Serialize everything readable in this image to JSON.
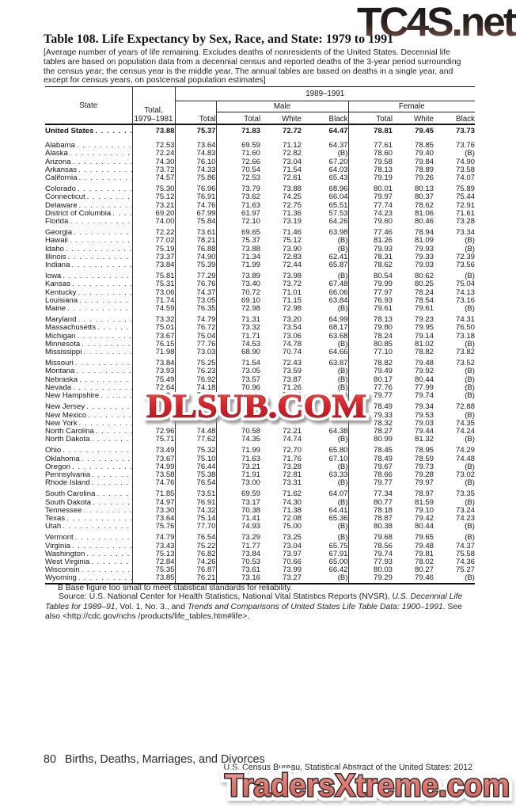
{
  "page": {
    "title": "Table 108. Life Expectancy by Sex, Race, and State: 1979 to 1991",
    "note": "[Average number of years of life remaining. Excludes deaths of nonresidents of the United States. Decennial life tables are based on population data from a decennial census and reported deaths of the 3-year period surrounding the census year; the census year is the middle year. The annual tables are based on deaths in a single year, and except for census years, on postcensal population estimates]",
    "footnote": "B Base figure too small to meet statistical standards for reliability.",
    "source_segments": [
      {
        "text": "Source: U.S. National Center for Health Statistics, National Vital Statistics Reports (NVSR), ",
        "italic": false
      },
      {
        "text": "U.S. Decennial Life Tables for 1989–91",
        "italic": true
      },
      {
        "text": ", Vol. 1, No. 3., and ",
        "italic": false
      },
      {
        "text": "Trends and Comparisons of United States Life Table Data: 1900–1991",
        "italic": true
      },
      {
        "text": ". See also <http://cdc.gov/nchs /products/life_tables.htm#life>.",
        "italic": false
      }
    ],
    "footer": {
      "page_number": "80",
      "section": "Births, Deaths, Marriages, and Divorces",
      "credit": "U.S. Census Bureau, Statistical Abstract of the United States: 2012"
    }
  },
  "watermarks": {
    "top": "TC4S.net",
    "middle": "DLSUB.COM",
    "bottom": "TradersXtreme.com",
    "top_colors": [
      "#151515",
      "#9a7568"
    ],
    "middle_colors": [
      "#ee4f44",
      "#b01420"
    ],
    "bottom_colors": [
      "#eda49c",
      "#cf6058"
    ]
  },
  "table": {
    "header": {
      "state": "State",
      "total_7981_line1": "Total,",
      "total_7981_line2": "1979–1981",
      "span_8991": "1989–1991",
      "total": "Total",
      "male": "Male",
      "female": "Female",
      "sub": [
        "Total",
        "White",
        "Black"
      ]
    },
    "us_row": {
      "state": "United States",
      "values": [
        "73.88",
        "75.37",
        "71.83",
        "72.72",
        "64.47",
        "78.81",
        "79.45",
        "73.73"
      ]
    },
    "groups": [
      [
        {
          "state": "Alabama",
          "values": [
            "72.53",
            "73.64",
            "69.59",
            "71.12",
            "64.37",
            "77.61",
            "78.85",
            "73.76"
          ]
        },
        {
          "state": "Alaska",
          "values": [
            "72.24",
            "74.83",
            "71.60",
            "72.82",
            "(B)",
            "78.60",
            "79.40",
            "(B)"
          ]
        },
        {
          "state": "Arizona",
          "values": [
            "74.30",
            "76.10",
            "72.66",
            "73.04",
            "67.20",
            "79.58",
            "79.84",
            "74.90"
          ]
        },
        {
          "state": "Arkansas",
          "values": [
            "73.72",
            "74.33",
            "70.54",
            "71.54",
            "64.03",
            "78.13",
            "78.89",
            "73.58"
          ]
        },
        {
          "state": "California",
          "values": [
            "74.57",
            "75.86",
            "72.53",
            "72.61",
            "65.43",
            "79.19",
            "79.26",
            "74.07"
          ]
        }
      ],
      [
        {
          "state": "Colorado",
          "values": [
            "75.30",
            "76.96",
            "73.79",
            "73.88",
            "68.96",
            "80.01",
            "80.13",
            "75.89"
          ]
        },
        {
          "state": "Connecticut",
          "values": [
            "75.12",
            "76.91",
            "73.62",
            "74.25",
            "66.04",
            "79.97",
            "80.37",
            "75.44"
          ]
        },
        {
          "state": "Delaware",
          "values": [
            "73.21",
            "74.76",
            "71.63",
            "72.75",
            "65.51",
            "77.74",
            "78.62",
            "72.91"
          ]
        },
        {
          "state": "District of Columbia",
          "values": [
            "69.20",
            "67.99",
            "61.97",
            "71.36",
            "57.53",
            "74.23",
            "81.06",
            "71.61"
          ]
        },
        {
          "state": "Florida",
          "values": [
            "74.00",
            "75.84",
            "72.10",
            "73.19",
            "64.26",
            "79.60",
            "80.46",
            "73.28"
          ]
        }
      ],
      [
        {
          "state": "Georgia",
          "values": [
            "72.22",
            "73.61",
            "69.65",
            "71.46",
            "63.98",
            "77.46",
            "78.94",
            "73.34"
          ]
        },
        {
          "state": "Hawaii",
          "values": [
            "77.02",
            "78.21",
            "75.37",
            "75.12",
            "(B)",
            "81.26",
            "81.09",
            "(B)"
          ]
        },
        {
          "state": "Idaho",
          "values": [
            "75.19",
            "76.88",
            "73.88",
            "73.90",
            "(B)",
            "79.93",
            "79.93",
            "(B)"
          ]
        },
        {
          "state": "Illinois",
          "values": [
            "73.37",
            "74.90",
            "71.34",
            "72.83",
            "62.41",
            "78.31",
            "79.33",
            "72.39"
          ]
        },
        {
          "state": "Indiana",
          "values": [
            "73.84",
            "75.39",
            "71.99",
            "72.44",
            "65.87",
            "78.62",
            "79.03",
            "73.56"
          ]
        }
      ],
      [
        {
          "state": "Iowa",
          "values": [
            "75.81",
            "77.29",
            "73.89",
            "73.98",
            "(B)",
            "80.54",
            "80.62",
            "(B)"
          ]
        },
        {
          "state": "Kansas",
          "values": [
            "75.31",
            "76.76",
            "73.40",
            "73.72",
            "67.48",
            "79.99",
            "80.25",
            "75.04"
          ]
        },
        {
          "state": "Kentucky",
          "values": [
            "73.06",
            "74.37",
            "70.72",
            "71.01",
            "66.06",
            "77.97",
            "78.24",
            "74.13"
          ]
        },
        {
          "state": "Louisiana",
          "values": [
            "71.74",
            "73.05",
            "69.10",
            "71.15",
            "63.84",
            "76.93",
            "78.54",
            "73.16"
          ]
        },
        {
          "state": "Maine",
          "values": [
            "74.59",
            "76.35",
            "72.98",
            "72.98",
            "(B)",
            "79.61",
            "79.61",
            "(B)"
          ]
        }
      ],
      [
        {
          "state": "Maryland",
          "values": [
            "73.32",
            "74.79",
            "71.31",
            "73.20",
            "64.99",
            "78.13",
            "79.23",
            "74.31"
          ]
        },
        {
          "state": "Massachusetts",
          "values": [
            "75.01",
            "76.72",
            "73.32",
            "73.54",
            "68.17",
            "79.80",
            "79.95",
            "76.50"
          ]
        },
        {
          "state": "Michigan",
          "values": [
            "73.67",
            "75.04",
            "71.71",
            "73.06",
            "63.68",
            "78.24",
            "79.14",
            "73.18"
          ]
        },
        {
          "state": "Minnesota",
          "values": [
            "76.15",
            "77.76",
            "74.53",
            "74.78",
            "(B)",
            "80.85",
            "81.02",
            "(B)"
          ]
        },
        {
          "state": "Mississippi",
          "values": [
            "71.98",
            "73.03",
            "68.90",
            "70.74",
            "64.66",
            "77.10",
            "78.82",
            "73.82"
          ]
        }
      ],
      [
        {
          "state": "Missouri",
          "values": [
            "73.84",
            "75.25",
            "71.54",
            "72.43",
            "63.87",
            "78.82",
            "79.48",
            "73.52"
          ]
        },
        {
          "state": "Montana",
          "values": [
            "73.93",
            "76.23",
            "73.05",
            "73.59",
            "(B)",
            "79.49",
            "79.92",
            "(B)"
          ]
        },
        {
          "state": "Nebraska",
          "values": [
            "75.49",
            "76.92",
            "73.57",
            "73.87",
            "(B)",
            "80.17",
            "80.44",
            "(B)"
          ]
        },
        {
          "state": "Nevada",
          "values": [
            "72.64",
            "74.18",
            "70.96",
            "71.26",
            "(B)",
            "77.76",
            "77.99",
            "(B)"
          ]
        },
        {
          "state": "New Hampshire",
          "values": [
            "74.98",
            "76.72",
            "73.52",
            "73.48",
            "(B)",
            "79.77",
            "79.74",
            "(B)"
          ]
        }
      ],
      [
        {
          "state": "New Jersey",
          "values": [
            "",
            "",
            "",
            "",
            "",
            "78.49",
            "79.34",
            "72.88"
          ]
        },
        {
          "state": "New Mexico",
          "values": [
            "",
            "",
            "",
            "",
            "",
            "79.33",
            "79.53",
            "(B)"
          ]
        },
        {
          "state": "New York",
          "values": [
            "",
            "",
            "",
            "",
            "",
            "78.32",
            "79.03",
            "74.35"
          ]
        },
        {
          "state": "North Carolina",
          "values": [
            "72.96",
            "74.48",
            "70.58",
            "72.21",
            "64.38",
            "78.27",
            "79.44",
            "74.24"
          ]
        },
        {
          "state": "North Dakota",
          "values": [
            "75.71",
            "77.62",
            "74.35",
            "74.74",
            "(B)",
            "80.99",
            "81.32",
            "(B)"
          ]
        }
      ],
      [
        {
          "state": "Ohio",
          "values": [
            "73.49",
            "75.32",
            "71.99",
            "72.70",
            "65.80",
            "78.45",
            "78.95",
            "74.29"
          ]
        },
        {
          "state": "Oklahoma",
          "values": [
            "73.67",
            "75.10",
            "71.63",
            "71.76",
            "67.10",
            "78.49",
            "78.59",
            "74.48"
          ]
        },
        {
          "state": "Oregon",
          "values": [
            "74.99",
            "76.44",
            "73.21",
            "73.28",
            "(B)",
            "79.67",
            "79.73",
            "(B)"
          ]
        },
        {
          "state": "Pennsylvania",
          "values": [
            "73.58",
            "75.38",
            "71.91",
            "72.81",
            "63.33",
            "78.66",
            "79.28",
            "73.02"
          ]
        },
        {
          "state": "Rhode Island",
          "values": [
            "74.76",
            "76.54",
            "73.00",
            "73.31",
            "(B)",
            "79.77",
            "79.97",
            "(B)"
          ]
        }
      ],
      [
        {
          "state": "South Carolina",
          "values": [
            "71.85",
            "73.51",
            "69.59",
            "71.62",
            "64.07",
            "77.34",
            "78.97",
            "73.35"
          ]
        },
        {
          "state": "South Dakota",
          "values": [
            "74.97",
            "76.91",
            "73.17",
            "74.30",
            "(B)",
            "80.77",
            "81.59",
            "(B)"
          ]
        },
        {
          "state": "Tennessee",
          "values": [
            "73.30",
            "74.32",
            "70.38",
            "71.38",
            "64.41",
            "78.18",
            "79.10",
            "73.24"
          ]
        },
        {
          "state": "Texas",
          "values": [
            "73.64",
            "75.14",
            "71.41",
            "72.08",
            "65.36",
            "78.87",
            "79.42",
            "74.23"
          ]
        },
        {
          "state": "Utah",
          "values": [
            "75.76",
            "77.70",
            "74.93",
            "75.00",
            "(B)",
            "80.38",
            "80.44",
            "(B)"
          ]
        }
      ],
      [
        {
          "state": "Vermont",
          "values": [
            "74.79",
            "76.54",
            "73.29",
            "73.25",
            "(B)",
            "79.68",
            "79.65",
            "(B)"
          ]
        },
        {
          "state": "Virginia",
          "values": [
            "73.43",
            "75.22",
            "71.77",
            "73.04",
            "65.75",
            "78.56",
            "79.48",
            "74.37"
          ]
        },
        {
          "state": "Washington",
          "values": [
            "75.13",
            "76.82",
            "73.84",
            "73.97",
            "67.91",
            "79.74",
            "79.81",
            "75.58"
          ]
        },
        {
          "state": "West Virginia",
          "values": [
            "72.84",
            "74.26",
            "70.53",
            "70.66",
            "65.00",
            "77.93",
            "78.02",
            "74.36"
          ]
        },
        {
          "state": "Wisconsin",
          "values": [
            "75.35",
            "76.87",
            "73.61",
            "73.99",
            "66.42",
            "80.03",
            "80.27",
            "75.27"
          ]
        },
        {
          "state": "Wyoming",
          "values": [
            "73.85",
            "76.21",
            "73.16",
            "73.27",
            "(B)",
            "79.29",
            "79.46",
            "(B)"
          ]
        }
      ]
    ]
  }
}
